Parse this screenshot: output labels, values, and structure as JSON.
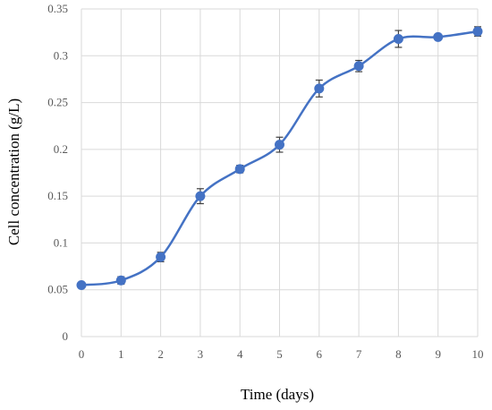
{
  "chart_data": {
    "type": "line",
    "title": "",
    "xlabel": "Time (days)",
    "ylabel": "Cell concentration (g/L)",
    "xlim": [
      0,
      10
    ],
    "ylim": [
      0,
      0.35
    ],
    "xticks": [
      "0",
      "1",
      "2",
      "3",
      "4",
      "5",
      "6",
      "7",
      "8",
      "9",
      "10"
    ],
    "yticks": [
      "0",
      "0.05",
      "0.1",
      "0.15",
      "0.2",
      "0.25",
      "0.3",
      "0.35"
    ],
    "grid": true,
    "legend": "none",
    "series": [
      {
        "x": [
          0,
          1,
          2,
          3,
          4,
          5,
          6,
          7,
          8,
          9,
          10
        ],
        "values": [
          0.055,
          0.06,
          0.085,
          0.15,
          0.179,
          0.205,
          0.265,
          0.289,
          0.318,
          0.32,
          0.326
        ],
        "error": [
          0.002,
          0.004,
          0.005,
          0.008,
          0.004,
          0.008,
          0.009,
          0.006,
          0.009,
          0.002,
          0.005
        ],
        "color": "#4472C4",
        "errorbar_color": "#404040",
        "smooth": true
      }
    ]
  }
}
